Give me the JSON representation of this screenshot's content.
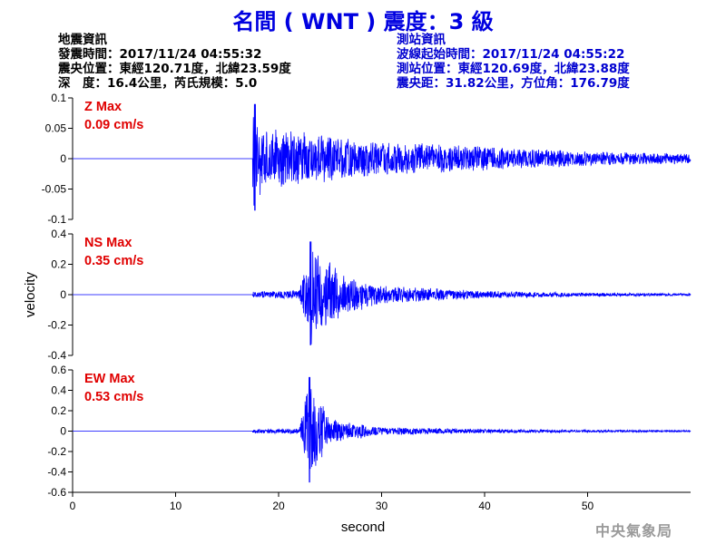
{
  "header": {
    "title": "名間 ( WNT ) 震度：3 級",
    "quake_info": [
      "地震資訊",
      "發震時間：2017/11/24 04:55:32",
      "震央位置：東經120.71度，北緯23.59度",
      "深　度：16.4公里，芮氏規模：5.0"
    ],
    "station_info": [
      "測站資訊",
      "波線起始時間：2017/11/24 04:55:22",
      "測站位置：東經120.69度，北緯23.88度",
      "震央距：31.82公里，方位角：176.79度"
    ]
  },
  "watermark": "中央氣象局",
  "colors": {
    "trace": "#0000ff",
    "title": "#0000e0",
    "station_info": "#0000d0",
    "max_label": "#e00000"
  },
  "chart_data": {
    "type": "line",
    "xlabel": "second",
    "ylabel": "velocity",
    "xlim": [
      0,
      60
    ],
    "x_ticks": [
      0,
      10,
      20,
      30,
      40,
      50
    ],
    "panels": [
      {
        "name": "Z",
        "label": "Z Max",
        "max_text": "0.09 cm/s",
        "ylim": [
          -0.1,
          0.1
        ],
        "y_ticks": [
          0.1,
          0.05,
          0,
          -0.05,
          -0.1
        ],
        "y_tick_labels": [
          "0.1",
          "0.05",
          "0",
          "-0.05",
          "-0.1"
        ],
        "peak_abs": 0.09,
        "peak_time": 17.7,
        "onset_s": 17.5,
        "approx_envelope": [
          [
            17.5,
            0.09
          ],
          [
            18.5,
            0.05
          ],
          [
            22.5,
            0.045
          ],
          [
            30,
            0.03
          ],
          [
            40,
            0.02
          ],
          [
            50,
            0.012
          ],
          [
            60,
            0.008
          ]
        ]
      },
      {
        "name": "NS",
        "label": "NS Max",
        "max_text": "0.35 cm/s",
        "ylim": [
          -0.4,
          0.4
        ],
        "y_ticks": [
          0.4,
          0.2,
          0,
          -0.2,
          -0.4
        ],
        "y_tick_labels": [
          "0.4",
          "0.2",
          "0",
          "-0.2",
          "-0.4"
        ],
        "peak_abs": 0.35,
        "peak_time": 23.1,
        "onset_s": 17.5,
        "approx_envelope": [
          [
            17.5,
            0.02
          ],
          [
            22.0,
            0.03
          ],
          [
            23.1,
            0.35
          ],
          [
            26,
            0.15
          ],
          [
            30,
            0.06
          ],
          [
            40,
            0.025
          ],
          [
            50,
            0.012
          ],
          [
            60,
            0.008
          ]
        ]
      },
      {
        "name": "EW",
        "label": "EW Max",
        "max_text": "0.53 cm/s",
        "ylim": [
          -0.6,
          0.6
        ],
        "y_ticks": [
          0.6,
          0.4,
          0.2,
          0,
          -0.2,
          -0.4,
          -0.6
        ],
        "y_tick_labels": [
          "0.6",
          "0.4",
          "0.2",
          "0",
          "-0.2",
          "-0.4",
          "-0.6"
        ],
        "peak_abs": 0.53,
        "peak_time": 23.0,
        "onset_s": 17.5,
        "approx_envelope": [
          [
            17.5,
            0.02
          ],
          [
            22.0,
            0.03
          ],
          [
            23.0,
            0.53
          ],
          [
            25,
            0.12
          ],
          [
            30,
            0.04
          ],
          [
            40,
            0.02
          ],
          [
            50,
            0.012
          ],
          [
            60,
            0.008
          ]
        ]
      }
    ]
  }
}
